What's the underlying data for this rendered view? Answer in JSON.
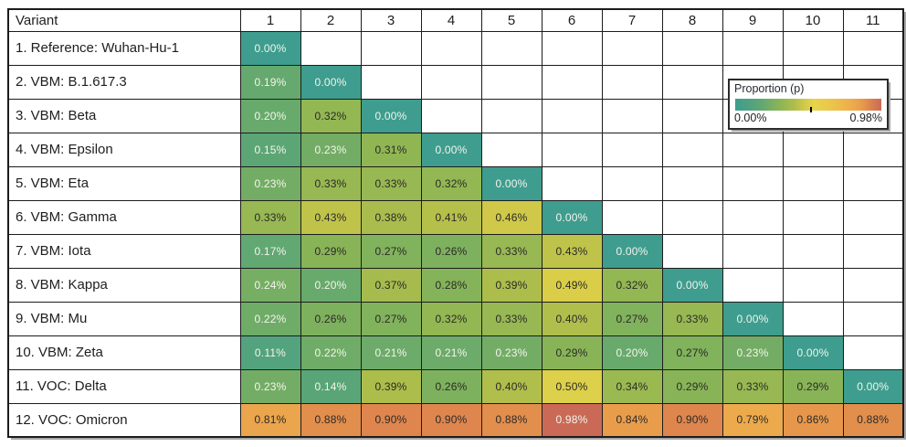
{
  "chart_data": {
    "type": "heatmap",
    "corner_label": "Variant",
    "columns": [
      "1",
      "2",
      "3",
      "4",
      "5",
      "6",
      "7",
      "8",
      "9",
      "10",
      "11"
    ],
    "unit": "percent",
    "value_range": [
      0.0,
      0.98
    ],
    "rows": [
      {
        "label": "1. Reference: Wuhan-Hu-1",
        "values": [
          0.0
        ]
      },
      {
        "label": "2. VBM: B.1.617.3",
        "values": [
          0.19,
          0.0
        ]
      },
      {
        "label": "3. VBM: Beta",
        "values": [
          0.2,
          0.32,
          0.0
        ]
      },
      {
        "label": "4. VBM: Epsilon",
        "values": [
          0.15,
          0.23,
          0.31,
          0.0
        ]
      },
      {
        "label": "5. VBM: Eta",
        "values": [
          0.23,
          0.33,
          0.33,
          0.32,
          0.0
        ]
      },
      {
        "label": "6. VBM: Gamma",
        "values": [
          0.33,
          0.43,
          0.38,
          0.41,
          0.46,
          0.0
        ]
      },
      {
        "label": "7. VBM: Iota",
        "values": [
          0.17,
          0.29,
          0.27,
          0.26,
          0.33,
          0.43,
          0.0
        ]
      },
      {
        "label": "8. VBM: Kappa",
        "values": [
          0.24,
          0.2,
          0.37,
          0.28,
          0.39,
          0.49,
          0.32,
          0.0
        ]
      },
      {
        "label": "9. VBM: Mu",
        "values": [
          0.22,
          0.26,
          0.27,
          0.32,
          0.33,
          0.4,
          0.27,
          0.33,
          0.0
        ]
      },
      {
        "label": "10. VBM: Zeta",
        "values": [
          0.11,
          0.22,
          0.21,
          0.21,
          0.23,
          0.29,
          0.2,
          0.27,
          0.23,
          0.0
        ]
      },
      {
        "label": "11. VOC: Delta",
        "values": [
          0.23,
          0.14,
          0.39,
          0.26,
          0.4,
          0.5,
          0.34,
          0.29,
          0.33,
          0.29,
          0.0
        ]
      },
      {
        "label": "12. VOC: Omicron",
        "values": [
          0.81,
          0.88,
          0.9,
          0.9,
          0.88,
          0.98,
          0.84,
          0.9,
          0.79,
          0.86,
          0.88
        ]
      }
    ],
    "legend": {
      "title": "Proportion (p)",
      "min_label": "0.00%",
      "max_label": "0.98%",
      "tick_value": 0.5
    },
    "colormap_stops": [
      {
        "v": 0.0,
        "color": "#3E9D8E"
      },
      {
        "v": 0.1,
        "color": "#50A280"
      },
      {
        "v": 0.2,
        "color": "#68AA6C"
      },
      {
        "v": 0.3,
        "color": "#8CB555"
      },
      {
        "v": 0.4,
        "color": "#B0BE4B"
      },
      {
        "v": 0.47,
        "color": "#D4CA49"
      },
      {
        "v": 0.53,
        "color": "#E6D54A"
      },
      {
        "v": 0.65,
        "color": "#ECC44B"
      },
      {
        "v": 0.78,
        "color": "#EEAC4C"
      },
      {
        "v": 0.85,
        "color": "#E89B4B"
      },
      {
        "v": 0.9,
        "color": "#DE864E"
      },
      {
        "v": 0.98,
        "color": "#CA6A56"
      }
    ]
  },
  "style": {
    "border_color": "#1C1C1C",
    "background": "#FFFFFF",
    "cell_text_dark": "#2B2A27",
    "cell_text_light": "#F4F4EC",
    "light_text_low_threshold": 0.25,
    "light_text_high_threshold": 0.95,
    "shadow_color": "#A6A6A6"
  }
}
